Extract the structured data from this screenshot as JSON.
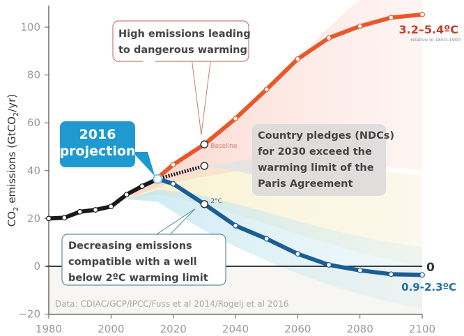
{
  "chart_data": {
    "type": "line",
    "title": "",
    "xlabel": "",
    "ylabel": "CO₂ emissions (GtCO₂/yr)",
    "ylabel_parts": {
      "pre": "CO",
      "sub1": "2",
      "mid": " emissions (GtCO",
      "sub2": "2",
      "post": "/yr)"
    },
    "xlim": [
      1980,
      2100
    ],
    "ylim": [
      -20,
      110
    ],
    "xticks": [
      1980,
      2000,
      2020,
      2040,
      2060,
      2080,
      2100
    ],
    "yticks": [
      -20,
      0,
      20,
      40,
      60,
      80,
      100
    ],
    "xtick_labels": [
      "1980",
      "2000",
      "2020",
      "2040",
      "2060",
      "2080",
      "2100"
    ],
    "ytick_labels": [
      "−20",
      "0",
      "20",
      "40",
      "60",
      "80",
      "100"
    ],
    "grid": false,
    "series": [
      {
        "name": "",
        "style": "historical",
        "color": "#1a1a1a",
        "x": [
          1980,
          1985,
          1990,
          1995,
          2000,
          2005,
          2010,
          2015
        ],
        "y": [
          20,
          20.3,
          22.8,
          23.6,
          25,
          30,
          33.5,
          36.5
        ]
      },
      {
        "name": "Baseline",
        "style": "solid",
        "color": "#e8582a",
        "x": [
          2015,
          2020,
          2030,
          2040,
          2050,
          2060,
          2070,
          2080,
          2090,
          2100
        ],
        "y": [
          37,
          42.5,
          51,
          61.8,
          74,
          86.7,
          95.5,
          100.4,
          104,
          105.3
        ]
      },
      {
        "name": "",
        "style": "dotted",
        "color": "#1a1a1a",
        "x": [
          2015,
          2030
        ],
        "y": [
          36.5,
          42
        ]
      },
      {
        "name": "2°C",
        "style": "solid",
        "color": "#1a5e95",
        "x": [
          2015,
          2020,
          2030,
          2040,
          2050,
          2060,
          2070,
          2080,
          2090,
          2100
        ],
        "y": [
          36.5,
          34.5,
          26,
          17,
          11.5,
          5.2,
          0.6,
          -1.7,
          -3.3,
          -3.6
        ]
      }
    ],
    "annotations": {
      "high_emissions": [
        "High emissions leading",
        "to dangerous warming"
      ],
      "projection": [
        "2016",
        "projection"
      ],
      "pledges": [
        "Country pledges (NDCs)",
        "for 2030 exceed the",
        "warming limit of the",
        "Paris Agreement"
      ],
      "decreasing": [
        "Decreasing emissions",
        "compatible with a well",
        "below 2ºC warming limit"
      ],
      "high_range": "3.2–5.4ºC",
      "high_range_note": "relative to 1850–1900",
      "low_range": "0.9-2.3ºC",
      "zero_label": "0",
      "source": "Data: CDIAC/GCP/IPCC/Fuss et al 2014/Rogelj et al 2016"
    },
    "colors": {
      "projection_box": "#1e9ad0",
      "high": "#e8582a",
      "low": "#1a5e95",
      "high_text": "#c43c2a",
      "low_text": "#1f6fa3"
    }
  }
}
